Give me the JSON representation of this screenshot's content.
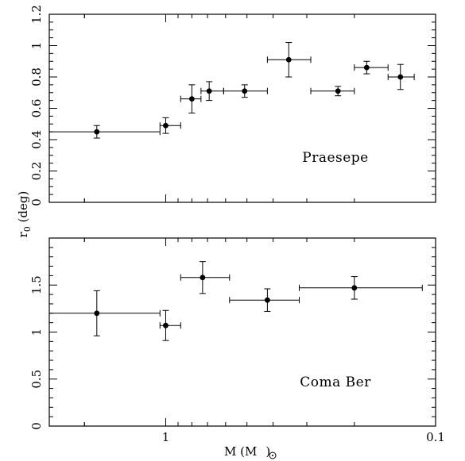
{
  "chart_data": [
    {
      "type": "scatter",
      "panel": "top",
      "annotation": "Praesepe",
      "xscale": "log-reversed",
      "xlim": [
        2.7,
        0.1
      ],
      "ylim": [
        0,
        1.2
      ],
      "yticks": [
        "0",
        "0.2",
        "0.4",
        "0.6",
        "0.8",
        "1",
        "1.2"
      ],
      "points": [
        {
          "x": 1.8,
          "xlo": 2.7,
          "xhi": 1.05,
          "y": 0.45,
          "yerr": 0.04
        },
        {
          "x": 1.0,
          "xlo": 1.05,
          "xhi": 0.88,
          "y": 0.49,
          "yerr": 0.05
        },
        {
          "x": 0.8,
          "xlo": 0.88,
          "xhi": 0.74,
          "y": 0.66,
          "yerr": 0.09
        },
        {
          "x": 0.69,
          "xlo": 0.74,
          "xhi": 0.61,
          "y": 0.71,
          "yerr": 0.06
        },
        {
          "x": 0.51,
          "xlo": 0.61,
          "xhi": 0.42,
          "y": 0.71,
          "yerr": 0.04
        },
        {
          "x": 0.35,
          "xlo": 0.42,
          "xhi": 0.29,
          "y": 0.91,
          "yerr": 0.11
        },
        {
          "x": 0.23,
          "xlo": 0.29,
          "xhi": 0.2,
          "y": 0.71,
          "yerr": 0.03
        },
        {
          "x": 0.18,
          "xlo": 0.2,
          "xhi": 0.15,
          "y": 0.86,
          "yerr": 0.04
        },
        {
          "x": 0.135,
          "xlo": 0.15,
          "xhi": 0.12,
          "y": 0.8,
          "yerr": 0.08
        }
      ]
    },
    {
      "type": "scatter",
      "panel": "bottom",
      "annotation": "Coma Ber",
      "xscale": "log-reversed",
      "xlim": [
        2.7,
        0.1
      ],
      "ylim": [
        0,
        2
      ],
      "yticks": [
        "0",
        "0.5",
        "1",
        "1.5"
      ],
      "xticks": [
        "1",
        "0.1"
      ],
      "xlabel_main": "M (M",
      "xlabel_tail": ")",
      "points": [
        {
          "x": 1.8,
          "xlo": 2.7,
          "xhi": 1.05,
          "y": 1.2,
          "yerr": 0.24
        },
        {
          "x": 1.0,
          "xlo": 1.05,
          "xhi": 0.88,
          "y": 1.07,
          "yerr": 0.16
        },
        {
          "x": 0.73,
          "xlo": 0.88,
          "xhi": 0.58,
          "y": 1.58,
          "yerr": 0.17
        },
        {
          "x": 0.42,
          "xlo": 0.58,
          "xhi": 0.32,
          "y": 1.34,
          "yerr": 0.12
        },
        {
          "x": 0.2,
          "xlo": 0.32,
          "xhi": 0.112,
          "y": 1.47,
          "yerr": 0.12
        }
      ]
    }
  ],
  "ylabel_main": "r",
  "ylabel_sub": "0",
  "ylabel_tail": " (deg)"
}
